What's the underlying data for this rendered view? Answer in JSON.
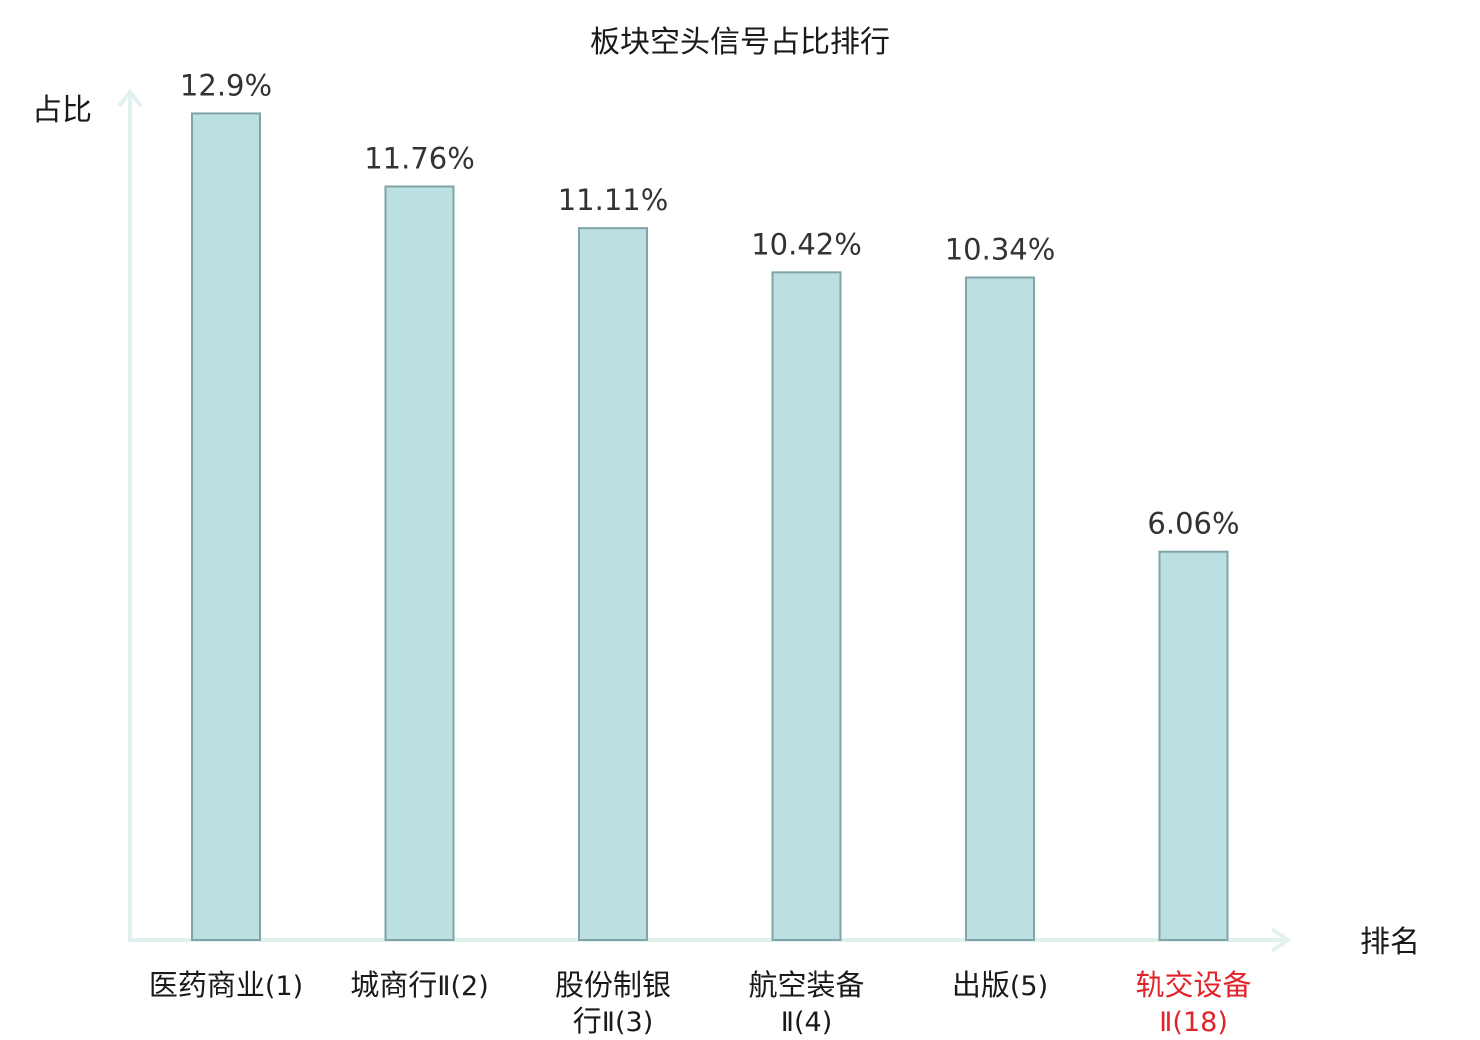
{
  "chart_data": {
    "type": "bar",
    "title": "板块空头信号占比排行",
    "ylabel": "占比",
    "xlabel": "排名",
    "categories": [
      {
        "lines": [
          {
            "cjk": "医药商业",
            "suffix": "(1)"
          }
        ],
        "highlight": false
      },
      {
        "lines": [
          {
            "cjk": "城商行",
            "suffix": "Ⅱ(2)"
          }
        ],
        "highlight": false
      },
      {
        "lines": [
          {
            "cjk": "股份制银",
            "suffix": ""
          },
          {
            "cjk": "行",
            "suffix": "Ⅱ(3)"
          }
        ],
        "highlight": false
      },
      {
        "lines": [
          {
            "cjk": "航空装备",
            "suffix": ""
          },
          {
            "cjk": "",
            "suffix": "Ⅱ(4)"
          }
        ],
        "highlight": false
      },
      {
        "lines": [
          {
            "cjk": "出版",
            "suffix": "(5)"
          }
        ],
        "highlight": false
      },
      {
        "lines": [
          {
            "cjk": "轨交设备",
            "suffix": ""
          },
          {
            "cjk": "",
            "suffix": "Ⅱ(18)"
          }
        ],
        "highlight": true
      }
    ],
    "values": [
      12.9,
      11.76,
      11.11,
      10.42,
      10.34,
      6.06
    ],
    "value_labels": [
      "12.9%",
      "11.76%",
      "11.11%",
      "10.42%",
      "10.34%",
      "6.06%"
    ],
    "ylim": [
      0,
      13.5
    ],
    "grid": false,
    "colors": {
      "bar_fill": "#bce0e2",
      "bar_stroke": "#7fa3a6",
      "axis": "#e0f2ef",
      "highlight": "#e0242a",
      "text": "#1a1a1a"
    }
  }
}
